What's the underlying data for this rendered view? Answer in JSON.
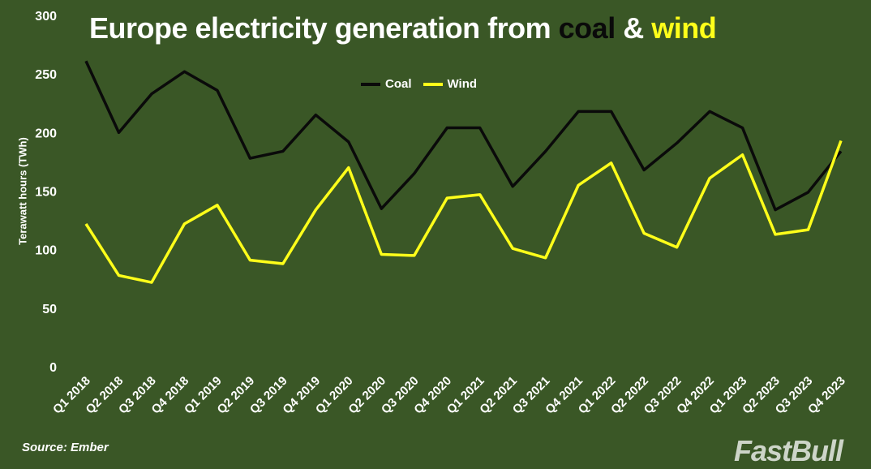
{
  "title": {
    "prefix": "Europe electricity generation from ",
    "coal": "coal",
    "amp": " & ",
    "wind": "wind"
  },
  "source": "Source: Ember",
  "watermark": "FastBull",
  "chart_data": {
    "type": "line",
    "title": "Europe electricity generation from coal & wind",
    "xlabel": "",
    "ylabel": "Terawatt hours (TWh)",
    "ylim": [
      0,
      300
    ],
    "yticks": [
      0,
      50,
      100,
      150,
      200,
      250,
      300
    ],
    "grid": false,
    "legend": "top-center",
    "categories": [
      "Q1 2018",
      "Q2 2018",
      "Q3 2018",
      "Q4 2018",
      "Q1 2019",
      "Q2 2019",
      "Q3 2019",
      "Q4 2019",
      "Q1 2020",
      "Q2 2020",
      "Q3 2020",
      "Q4 2020",
      "Q1 2021",
      "Q2 2021",
      "Q3 2021",
      "Q4 2021",
      "Q1 2022",
      "Q2 2022",
      "Q3 2022",
      "Q4 2022",
      "Q1 2023",
      "Q2 2023",
      "Q3 2023",
      "Q4 2023"
    ],
    "series": [
      {
        "name": "Coal",
        "color": "#0a0a0a",
        "values": [
          261,
          200,
          233,
          252,
          236,
          178,
          184,
          215,
          192,
          135,
          165,
          204,
          204,
          154,
          184,
          218,
          218,
          168,
          191,
          218,
          204,
          134,
          149,
          184
        ]
      },
      {
        "name": "Wind",
        "color": "#ffff1a",
        "values": [
          122,
          78,
          72,
          122,
          138,
          91,
          88,
          134,
          170,
          96,
          95,
          144,
          147,
          101,
          93,
          155,
          174,
          114,
          102,
          161,
          181,
          113,
          117,
          193
        ]
      }
    ]
  }
}
